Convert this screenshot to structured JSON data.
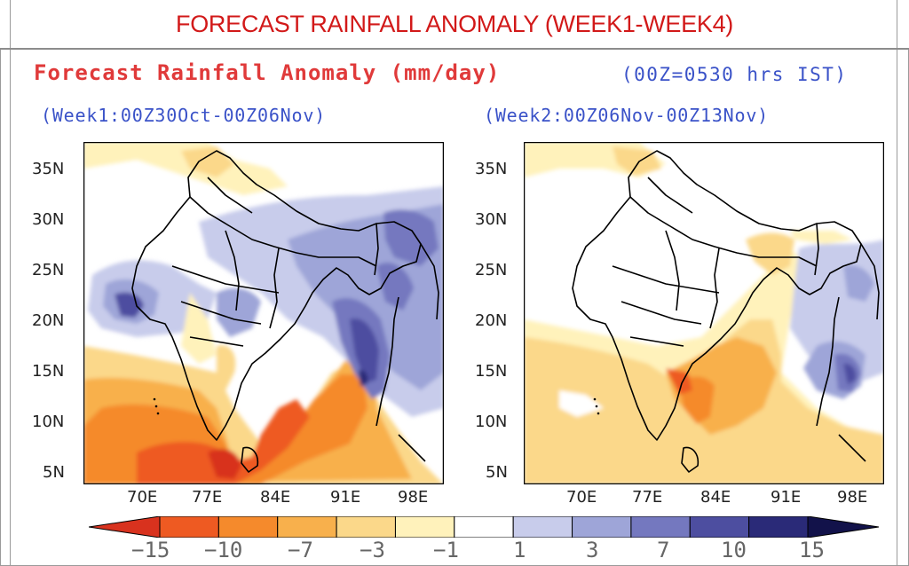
{
  "page": {
    "title": "FORECAST RAINFALL ANOMALY (WEEK1-WEEK4)",
    "subtitle": "Forecast Rainfall Anomaly (mm/day)",
    "time_note": "(00Z=0530 hrs IST)"
  },
  "panels": [
    {
      "title": "(Week1:00Z30Oct-00Z06Nov)",
      "lat_labels": [
        "35N",
        "30N",
        "25N",
        "20N",
        "15N",
        "10N",
        "5N"
      ],
      "lon_labels": [
        "70E",
        "77E",
        "84E",
        "91E",
        "98E"
      ]
    },
    {
      "title": "(Week2:00Z06Nov-00Z13Nov)",
      "lat_labels": [
        "35N",
        "30N",
        "25N",
        "20N",
        "15N",
        "10N",
        "5N"
      ],
      "lon_labels": [
        "70E",
        "77E",
        "84E",
        "91E",
        "98E"
      ]
    }
  ],
  "colorbar": {
    "labels": [
      "−15",
      "−10",
      "−7",
      "−3",
      "−1",
      "1",
      "3",
      "7",
      "10",
      "15"
    ],
    "colors": [
      "#d8321e",
      "#ee5a22",
      "#f58a2c",
      "#f8b04c",
      "#fbd88a",
      "#fff2bb",
      "#ffffff",
      "#c8cceb",
      "#9ea5d8",
      "#7478bf",
      "#4d4ea0",
      "#2a2a78",
      "#12124a"
    ]
  }
}
